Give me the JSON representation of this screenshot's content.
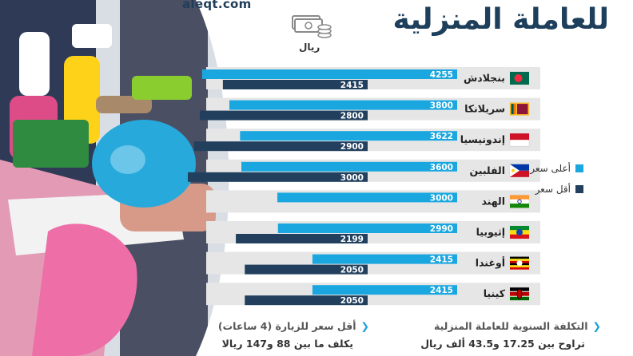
{
  "header": {
    "brand": "aleqt.com",
    "title": "للعاملة المنزلية",
    "currency_label": "ريال",
    "currency_icon": "money-stack-icon"
  },
  "legend": {
    "high_label": "أعلى سعر",
    "low_label": "أقل سعر"
  },
  "colors": {
    "high": "#1aa7e0",
    "low": "#22405e",
    "row_bg": "#e6e6e6",
    "title": "#1d3f5c"
  },
  "chart_data": {
    "type": "bar",
    "orientation": "horizontal",
    "direction": "right-to-left",
    "categories": [
      "بنجلادش",
      "سريلانكا",
      "إندونيسيا",
      "الفلبين",
      "الهند",
      "إثيوبيا",
      "أوغندا",
      "كينيا"
    ],
    "series": [
      {
        "name": "أعلى سعر",
        "values": [
          4255,
          3800,
          3622,
          3600,
          3000,
          2990,
          2415,
          2415
        ]
      },
      {
        "name": "أقل سعر",
        "values": [
          2415,
          2800,
          2900,
          3000,
          null,
          2199,
          2050,
          2050
        ]
      }
    ],
    "flags": [
      "bangladesh",
      "sri-lanka",
      "indonesia",
      "philippines",
      "india",
      "ethiopia",
      "uganda",
      "kenya"
    ],
    "title": "للعاملة المنزلية",
    "xlabel": "",
    "ylabel": "",
    "legend_position": "right",
    "grid": false
  },
  "notes": {
    "annual": {
      "line1": "التكلفة السنوية للعاملة المنزلية",
      "line2": "تراوح بين 17.25 و43.5 ألف ريال"
    },
    "visit": {
      "line1": "أقل سعر للزيارة (4 ساعات)",
      "line2": "يكلف ما بين 88 و147 ريالا"
    }
  }
}
